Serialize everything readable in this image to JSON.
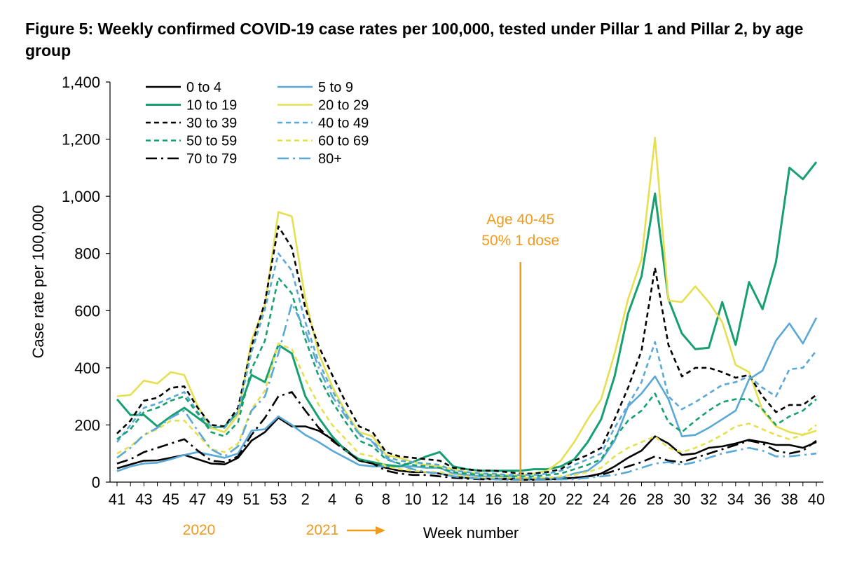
{
  "title": "Figure 5: Weekly confirmed COVID-19 case rates per 100,000, tested under Pillar 1 and Pillar 2, by age group",
  "colors": {
    "black": "#000000",
    "light_blue": "#5aa8d6",
    "green": "#17a06f",
    "yellow": "#e6e051",
    "orange": "#f29a1e"
  },
  "chart_data": {
    "type": "line",
    "title": "Figure 5: Weekly confirmed COVID-19 case rates per 100,000, tested under Pillar 1 and Pillar 2, by age group",
    "xlabel": "Week number",
    "ylabel": "Case rate per 100,000",
    "ylim": [
      0,
      1400
    ],
    "y_ticks": [
      "0",
      "200",
      "400",
      "600",
      "800",
      "1,000",
      "1,200",
      "1,400"
    ],
    "x_tick_labels": [
      "41",
      "43",
      "45",
      "47",
      "49",
      "51",
      "53",
      "2",
      "4",
      "6",
      "8",
      "10",
      "12",
      "14",
      "16",
      "18",
      "20",
      "22",
      "24",
      "26",
      "28",
      "30",
      "32",
      "34",
      "36",
      "38",
      "40"
    ],
    "x": [
      "41",
      "42",
      "43",
      "44",
      "45",
      "46",
      "47",
      "48",
      "49",
      "50",
      "51",
      "52",
      "53",
      "1",
      "2",
      "3",
      "4",
      "5",
      "6",
      "7",
      "8",
      "9",
      "10",
      "11",
      "12",
      "13",
      "14",
      "15",
      "16",
      "17",
      "18",
      "19",
      "20",
      "21",
      "22",
      "23",
      "24",
      "25",
      "26",
      "27",
      "28",
      "29",
      "30",
      "31",
      "32",
      "33",
      "34",
      "35",
      "36",
      "37",
      "38",
      "39",
      "40"
    ],
    "year_labels": [
      "2020",
      "2021"
    ],
    "annotation": {
      "line1": "Age 40-45",
      "line2": "50% 1 dose",
      "at_week": "18"
    },
    "grid": false,
    "legend_position": "top-left",
    "series": [
      {
        "name": "0 to 4",
        "color": "#000000",
        "style": "solid",
        "width": 2.6,
        "values": [
          48,
          62,
          75,
          76,
          85,
          95,
          80,
          65,
          62,
          85,
          145,
          175,
          225,
          195,
          195,
          180,
          150,
          115,
          75,
          65,
          50,
          40,
          35,
          35,
          30,
          20,
          15,
          12,
          12,
          12,
          10,
          10,
          10,
          12,
          15,
          20,
          30,
          55,
          85,
          110,
          160,
          135,
          95,
          100,
          120,
          125,
          135,
          148,
          140,
          130,
          130,
          120,
          140
        ]
      },
      {
        "name": "5 to 9",
        "color": "#5aa8d6",
        "style": "solid",
        "width": 2.6,
        "values": [
          38,
          55,
          65,
          68,
          80,
          95,
          105,
          95,
          85,
          100,
          180,
          185,
          230,
          200,
          165,
          140,
          110,
          85,
          60,
          55,
          55,
          55,
          55,
          50,
          50,
          30,
          25,
          20,
          20,
          20,
          15,
          15,
          15,
          15,
          30,
          40,
          75,
          145,
          265,
          310,
          370,
          290,
          160,
          165,
          190,
          220,
          250,
          360,
          390,
          495,
          555,
          485,
          575
        ]
      },
      {
        "name": "10 to 19",
        "color": "#17a06f",
        "style": "solid",
        "width": 3.0,
        "values": [
          290,
          235,
          235,
          195,
          230,
          260,
          225,
          190,
          195,
          245,
          375,
          350,
          480,
          450,
          300,
          225,
          160,
          110,
          80,
          70,
          60,
          55,
          70,
          90,
          105,
          55,
          45,
          40,
          40,
          40,
          40,
          45,
          45,
          55,
          80,
          140,
          220,
          370,
          590,
          720,
          1010,
          640,
          520,
          465,
          470,
          630,
          480,
          700,
          605,
          770,
          1100,
          1060,
          1120
        ]
      },
      {
        "name": "20 to 29",
        "color": "#e6e051",
        "style": "solid",
        "width": 2.6,
        "values": [
          300,
          305,
          355,
          345,
          385,
          375,
          265,
          190,
          175,
          235,
          495,
          620,
          945,
          930,
          640,
          450,
          335,
          245,
          175,
          160,
          95,
          85,
          70,
          60,
          55,
          45,
          35,
          30,
          25,
          25,
          25,
          30,
          40,
          75,
          140,
          220,
          290,
          450,
          640,
          780,
          1205,
          635,
          630,
          685,
          630,
          560,
          410,
          385,
          250,
          195,
          175,
          165,
          180
        ]
      },
      {
        "name": "30 to 39",
        "color": "#000000",
        "style": "dashed",
        "width": 2.6,
        "values": [
          170,
          215,
          285,
          295,
          330,
          335,
          260,
          200,
          195,
          260,
          475,
          630,
          895,
          820,
          610,
          475,
          375,
          280,
          195,
          175,
          105,
          90,
          85,
          80,
          75,
          50,
          45,
          40,
          40,
          35,
          30,
          30,
          35,
          45,
          75,
          95,
          120,
          220,
          330,
          460,
          750,
          480,
          370,
          400,
          400,
          385,
          365,
          375,
          300,
          245,
          270,
          270,
          305
        ]
      },
      {
        "name": "40 to 49",
        "color": "#5aa8d6",
        "style": "dashed",
        "width": 2.6,
        "values": [
          140,
          200,
          260,
          275,
          295,
          315,
          245,
          195,
          190,
          245,
          455,
          605,
          800,
          740,
          560,
          420,
          320,
          240,
          165,
          145,
          90,
          75,
          70,
          65,
          60,
          40,
          35,
          30,
          30,
          25,
          25,
          25,
          30,
          40,
          60,
          80,
          100,
          190,
          270,
          350,
          490,
          300,
          255,
          280,
          310,
          340,
          350,
          370,
          330,
          300,
          395,
          400,
          460
        ]
      },
      {
        "name": "50 to 59",
        "color": "#17a06f",
        "style": "dashed",
        "width": 2.6,
        "values": [
          150,
          185,
          245,
          260,
          285,
          300,
          240,
          175,
          160,
          210,
          395,
          495,
          715,
          660,
          500,
          370,
          280,
          210,
          145,
          125,
          80,
          65,
          60,
          55,
          50,
          35,
          30,
          25,
          25,
          20,
          20,
          20,
          25,
          30,
          45,
          60,
          80,
          155,
          215,
          250,
          310,
          210,
          175,
          215,
          250,
          280,
          290,
          290,
          255,
          200,
          230,
          250,
          290
        ]
      },
      {
        "name": "60 to 69",
        "color": "#e6e051",
        "style": "dashed",
        "width": 2.6,
        "values": [
          100,
          125,
          165,
          185,
          215,
          215,
          165,
          115,
          105,
          135,
          255,
          320,
          485,
          465,
          360,
          270,
          200,
          150,
          100,
          90,
          55,
          45,
          40,
          35,
          35,
          25,
          20,
          15,
          15,
          15,
          15,
          15,
          15,
          20,
          25,
          35,
          50,
          90,
          120,
          140,
          160,
          120,
          105,
          120,
          140,
          165,
          195,
          205,
          185,
          165,
          150,
          165,
          200
        ]
      },
      {
        "name": "70 to 79",
        "color": "#000000",
        "style": "dashdot",
        "width": 2.6,
        "values": [
          65,
          80,
          105,
          120,
          135,
          150,
          110,
          75,
          70,
          90,
          165,
          225,
          300,
          315,
          250,
          190,
          145,
          110,
          75,
          65,
          40,
          30,
          25,
          25,
          20,
          15,
          12,
          10,
          10,
          10,
          8,
          8,
          10,
          10,
          15,
          20,
          25,
          40,
          55,
          70,
          90,
          75,
          70,
          85,
          100,
          115,
          130,
          145,
          135,
          110,
          100,
          110,
          145
        ]
      },
      {
        "name": "80+",
        "color": "#5aa8d6",
        "style": "dashdot",
        "width": 2.6,
        "values": [
          85,
          120,
          165,
          190,
          225,
          250,
          180,
          115,
          90,
          125,
          250,
          300,
          450,
          625,
          530,
          400,
          300,
          230,
          170,
          140,
          85,
          60,
          45,
          35,
          30,
          20,
          15,
          12,
          10,
          8,
          8,
          8,
          8,
          10,
          10,
          15,
          20,
          25,
          35,
          50,
          65,
          70,
          60,
          70,
          85,
          100,
          110,
          120,
          110,
          90,
          90,
          95,
          100
        ]
      }
    ]
  }
}
